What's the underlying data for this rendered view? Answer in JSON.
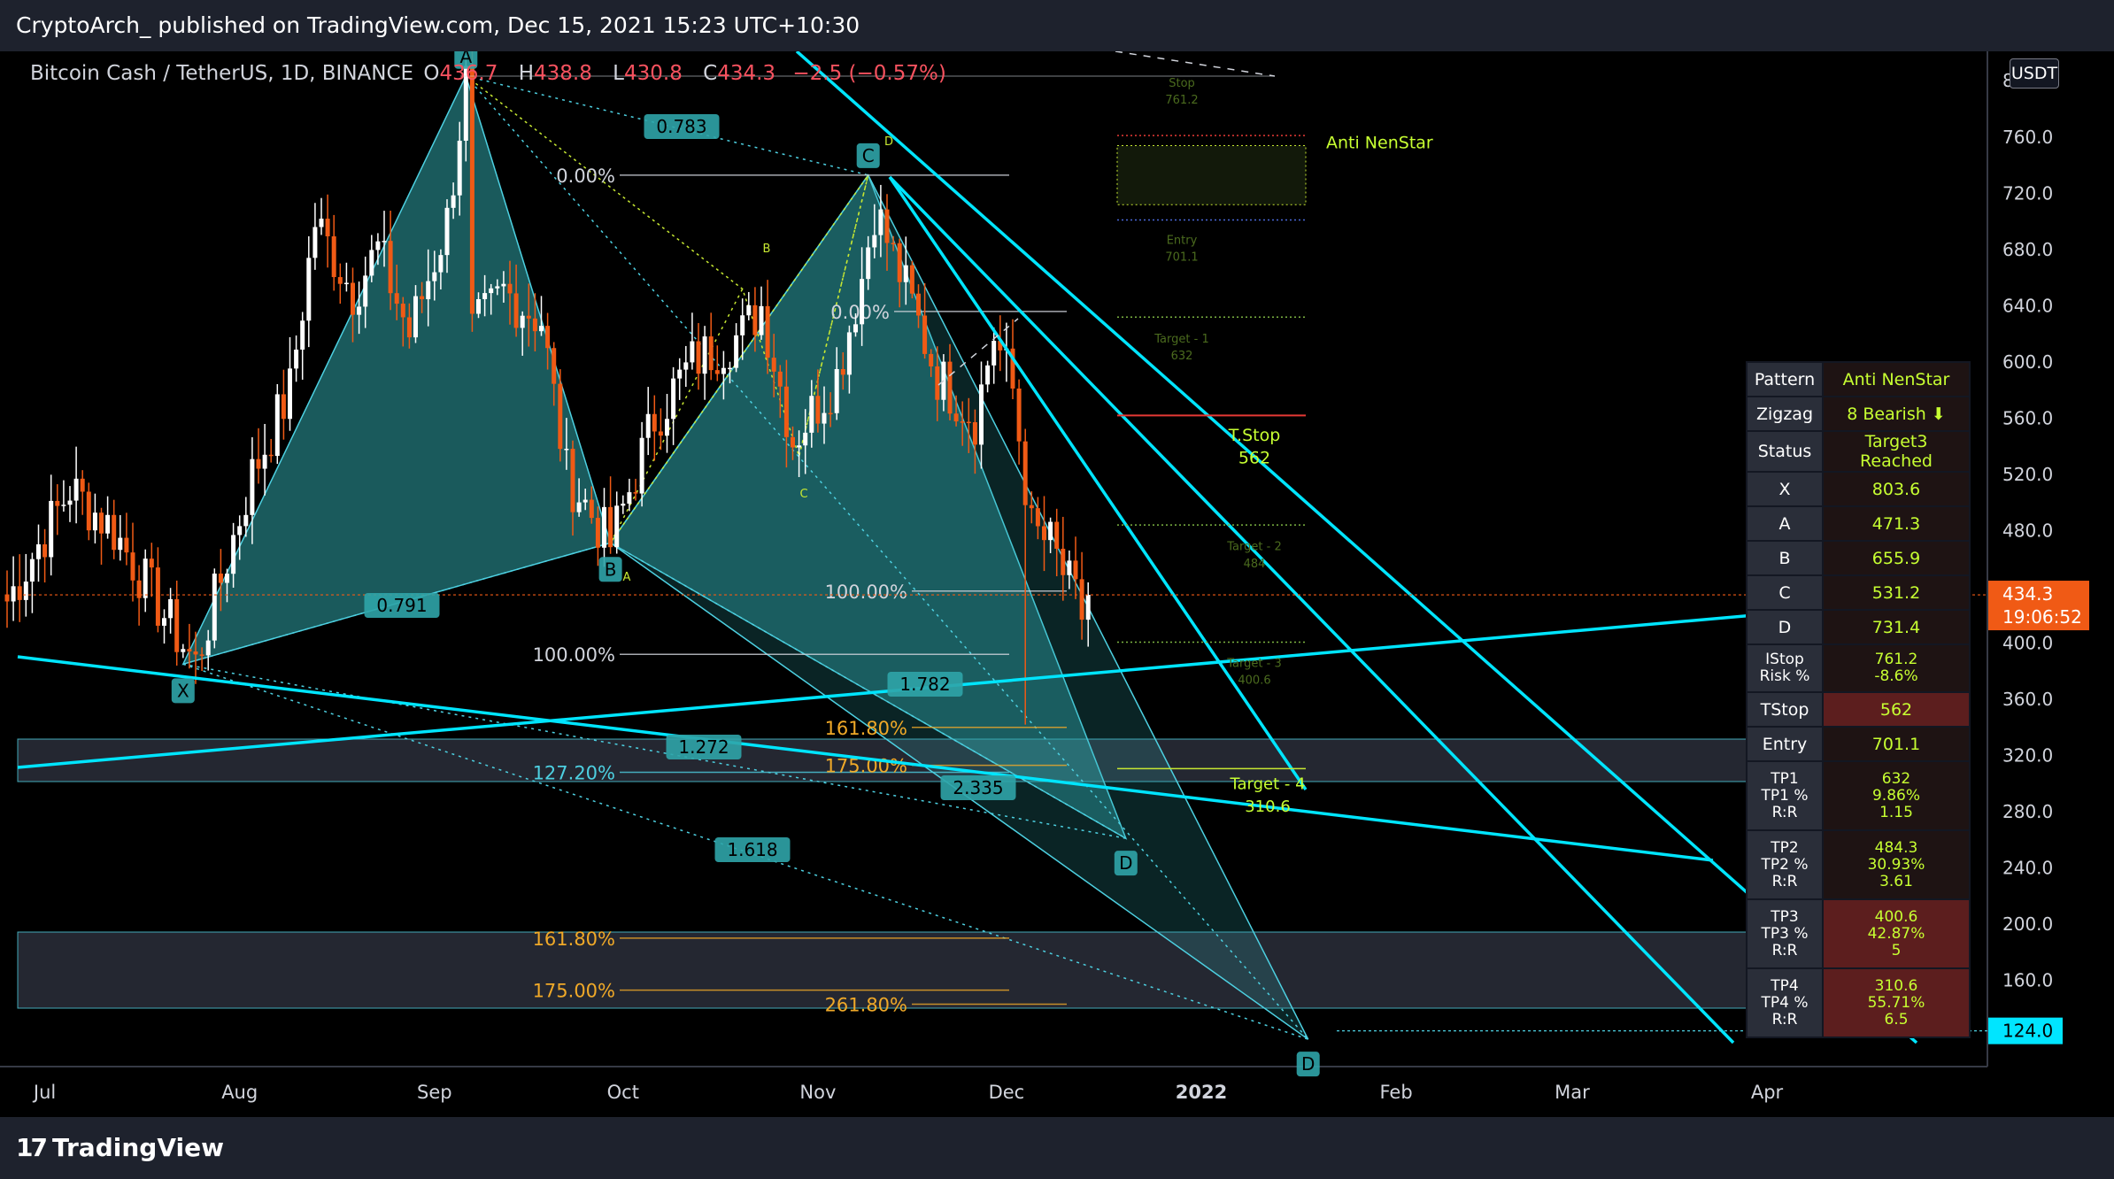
{
  "header": {
    "publisher": "CryptoArch_ published on TradingView.com, Dec 15, 2021 15:23 UTC+10:30"
  },
  "legend": {
    "symbol": "Bitcoin Cash / TetherUS, 1D, BINANCE",
    "open_label": "O",
    "open": "436.7",
    "high_label": "H",
    "high": "438.8",
    "low_label": "L",
    "low": "430.8",
    "close_label": "C",
    "close": "434.3",
    "change": "−2.5 (−0.57%)"
  },
  "currency_button": "USDT",
  "footer": {
    "logo_text": "TradingView"
  },
  "colors": {
    "background": "#131722",
    "bull": "#ffffff",
    "bear": "#f05a15",
    "pattern_fill": "#2fa4a8",
    "trendline": "#00e5ff",
    "fib_orange": "#f0a928",
    "fib_cyan": "#4dd0e1",
    "table_text": "#c7ff32"
  },
  "chart_data": {
    "type": "candlestick",
    "title": "Bitcoin Cash / TetherUS, 1D, BINANCE",
    "y_range": [
      90,
      860
    ],
    "x_start_date": "2021-06-25",
    "x_axis_labels": [
      {
        "date": "2021-07-01",
        "label": "Jul"
      },
      {
        "date": "2021-08-01",
        "label": "Aug"
      },
      {
        "date": "2021-09-01",
        "label": "Sep"
      },
      {
        "date": "2021-10-01",
        "label": "Oct"
      },
      {
        "date": "2021-11-01",
        "label": "Nov"
      },
      {
        "date": "2021-12-01",
        "label": "Dec"
      },
      {
        "date": "2022-01-01",
        "label": "2022"
      },
      {
        "date": "2022-02-01",
        "label": "Feb"
      },
      {
        "date": "2022-03-01",
        "label": "Mar"
      },
      {
        "date": "2022-04-01",
        "label": "Apr"
      }
    ],
    "y_axis_labels": [
      "760.0",
      "720.0",
      "680.0",
      "640.0",
      "600.0",
      "560.0",
      "520.0",
      "480.0",
      "400.0",
      "360.0",
      "320.0",
      "280.0",
      "240.0",
      "200.0",
      "160.0"
    ],
    "y_axis_top_partial": "8",
    "last_price": {
      "value": 434.3,
      "label": "434.3",
      "countdown": "19:06:52"
    },
    "target_price": {
      "value": 124.0,
      "label": "124.0"
    },
    "close_anchors": [
      {
        "date": "2021-06-25",
        "close": 430
      },
      {
        "date": "2021-07-05",
        "close": 510
      },
      {
        "date": "2021-07-12",
        "close": 480
      },
      {
        "date": "2021-07-20",
        "close": 420
      },
      {
        "date": "2021-07-25",
        "close": 385
      },
      {
        "date": "2021-08-03",
        "close": 520
      },
      {
        "date": "2021-08-09",
        "close": 580
      },
      {
        "date": "2021-08-13",
        "close": 700
      },
      {
        "date": "2021-08-19",
        "close": 650
      },
      {
        "date": "2021-08-23",
        "close": 680
      },
      {
        "date": "2021-08-28",
        "close": 620
      },
      {
        "date": "2021-09-03",
        "close": 700
      },
      {
        "date": "2021-09-06",
        "close": 800
      },
      {
        "date": "2021-09-07",
        "close": 620
      },
      {
        "date": "2021-09-12",
        "close": 650
      },
      {
        "date": "2021-09-18",
        "close": 630
      },
      {
        "date": "2021-09-22",
        "close": 520
      },
      {
        "date": "2021-09-29",
        "close": 470
      },
      {
        "date": "2021-10-06",
        "close": 560
      },
      {
        "date": "2021-10-12",
        "close": 600
      },
      {
        "date": "2021-10-20",
        "close": 620
      },
      {
        "date": "2021-10-23",
        "close": 640
      },
      {
        "date": "2021-10-28",
        "close": 545
      },
      {
        "date": "2021-11-04",
        "close": 590
      },
      {
        "date": "2021-11-08",
        "close": 660
      },
      {
        "date": "2021-11-10",
        "close": 710
      },
      {
        "date": "2021-11-16",
        "close": 640
      },
      {
        "date": "2021-11-20",
        "close": 590
      },
      {
        "date": "2021-11-26",
        "close": 560
      },
      {
        "date": "2021-11-29",
        "close": 620
      },
      {
        "date": "2021-12-02",
        "close": 580
      },
      {
        "date": "2021-12-05",
        "close": 480
      },
      {
        "date": "2021-12-08",
        "close": 470
      },
      {
        "date": "2021-12-13",
        "close": 420
      },
      {
        "date": "2021-12-14",
        "close": 434.3
      }
    ],
    "pattern_points": [
      {
        "label": "X",
        "date": "2021-07-23",
        "price": 385
      },
      {
        "label": "A",
        "date": "2021-09-06",
        "price": 803.6
      },
      {
        "label": "B",
        "date": "2021-09-29",
        "price": 471.3
      },
      {
        "label": "C",
        "date": "2021-11-09",
        "price": 733
      },
      {
        "label": "D",
        "date": "2021-12-20",
        "price": 261
      },
      {
        "label": "D",
        "date": "2022-01-18",
        "price": 118
      }
    ],
    "ratio_labels": [
      "0.783",
      "0.791",
      "1.272",
      "1.618",
      "2.335",
      "1.782"
    ],
    "fib_labels": [
      "0.00%",
      "0.00%",
      "100.00%",
      "100.00%",
      "127.20%",
      "161.80%",
      "175.00%",
      "161.80%",
      "175.00%",
      "261.80%"
    ],
    "level_labels": {
      "stop": "Stop",
      "stop_value": "761.2",
      "pattern_name": "Anti NenStar",
      "entry": "Entry",
      "entry_value": "701.1",
      "target1": "Target - 1",
      "target1_value": "632",
      "tstop": "T.Stop",
      "tstop_value": "562",
      "target2": "Target - 2",
      "target2_value": "484",
      "target3": "Target - 3",
      "target3_value": "400.6",
      "target4": "Target - 4",
      "target4_value": "310.6"
    },
    "mini_labels": [
      "B",
      "C",
      "D",
      "A"
    ]
  },
  "table": [
    {
      "key": "Pattern",
      "value": "Anti NenStar"
    },
    {
      "key": "Zigzag",
      "value": "8 Bearish ⬇"
    },
    {
      "key": "Status",
      "value": "Target3 Reached"
    },
    {
      "key": "X",
      "value": "803.6"
    },
    {
      "key": "A",
      "value": "471.3"
    },
    {
      "key": "B",
      "value": "655.9"
    },
    {
      "key": "C",
      "value": "531.2"
    },
    {
      "key": "D",
      "value": "731.4"
    },
    {
      "key": "IStop\nRisk %",
      "value": "761.2\n-8.6%"
    },
    {
      "key": "TStop",
      "value": "562"
    },
    {
      "key": "Entry",
      "value": "701.1"
    },
    {
      "key": "TP1\nTP1 %\nR:R",
      "value": "632\n9.86%\n1.15"
    },
    {
      "key": "TP2\nTP2 %\nR:R",
      "value": "484.3\n30.93%\n3.61"
    },
    {
      "key": "TP3\nTP3 %\nR:R",
      "value": "400.6\n42.87%\n5"
    },
    {
      "key": "TP4\nTP4 %\nR:R",
      "value": "310.6\n55.71%\n6.5"
    }
  ]
}
